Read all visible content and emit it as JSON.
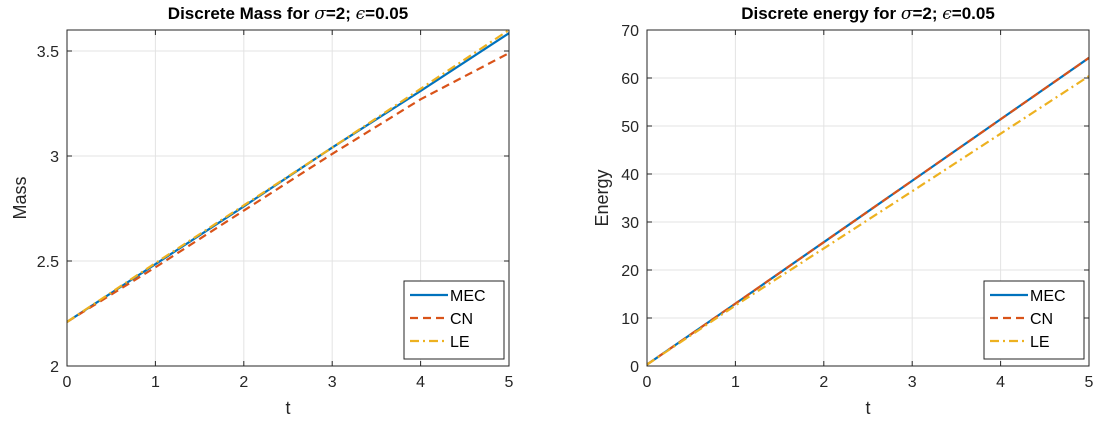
{
  "chart_data": [
    {
      "type": "line",
      "title_main": "Discrete Mass for ",
      "title_sigma": "σ",
      "title_mid": "=2; ",
      "title_eps": "ϵ",
      "title_end": "=0.05",
      "xlabel": "t",
      "ylabel": "Mass",
      "xlim": [
        0,
        5
      ],
      "ylim": [
        2,
        3.6
      ],
      "xticks": [
        0,
        1,
        2,
        3,
        4,
        5
      ],
      "yticks": [
        2,
        2.5,
        3,
        3.5
      ],
      "ytick_labels": [
        "2",
        "2.5",
        "3",
        "3.5"
      ],
      "grid": true,
      "legend_position": "bottom-right",
      "series": [
        {
          "name": "MEC",
          "color": "#0072BD",
          "style": "solid",
          "x": [
            0,
            1,
            2,
            3,
            4,
            5
          ],
          "y": [
            2.21,
            2.485,
            2.76,
            3.04,
            3.31,
            3.585
          ]
        },
        {
          "name": "CN",
          "color": "#D95319",
          "style": "dashed",
          "x": [
            0,
            1,
            2,
            3,
            4,
            5
          ],
          "y": [
            2.21,
            2.47,
            2.74,
            3.01,
            3.27,
            3.49
          ]
        },
        {
          "name": "LE",
          "color": "#EDB120",
          "style": "dashdot",
          "x": [
            0,
            1,
            2,
            3,
            4,
            5
          ],
          "y": [
            2.21,
            2.49,
            2.765,
            3.04,
            3.32,
            3.6
          ]
        }
      ]
    },
    {
      "type": "line",
      "title_main": "Discrete energy for ",
      "title_sigma": "σ",
      "title_mid": "=2; ",
      "title_eps": "ϵ",
      "title_end": "=0.05",
      "xlabel": "t",
      "ylabel": "Energy",
      "xlim": [
        0,
        5
      ],
      "ylim": [
        0,
        70
      ],
      "xticks": [
        0,
        1,
        2,
        3,
        4,
        5
      ],
      "yticks": [
        0,
        10,
        20,
        30,
        40,
        50,
        60,
        70
      ],
      "ytick_labels": [
        "0",
        "10",
        "20",
        "30",
        "40",
        "50",
        "60",
        "70"
      ],
      "grid": true,
      "legend_position": "bottom-right",
      "series": [
        {
          "name": "MEC",
          "color": "#0072BD",
          "style": "solid",
          "x": [
            0,
            1,
            2,
            3,
            4,
            5
          ],
          "y": [
            0.3,
            13.0,
            25.8,
            38.6,
            51.4,
            64.2
          ]
        },
        {
          "name": "CN",
          "color": "#D95319",
          "style": "dashed",
          "x": [
            0,
            1,
            2,
            3,
            4,
            5
          ],
          "y": [
            0.3,
            13.0,
            25.8,
            38.6,
            51.4,
            64.2
          ]
        },
        {
          "name": "LE",
          "color": "#EDB120",
          "style": "dashdot",
          "x": [
            0,
            1,
            2,
            3,
            4,
            5
          ],
          "y": [
            0.3,
            12.6,
            24.5,
            36.4,
            48.4,
            60.4
          ]
        }
      ]
    }
  ]
}
